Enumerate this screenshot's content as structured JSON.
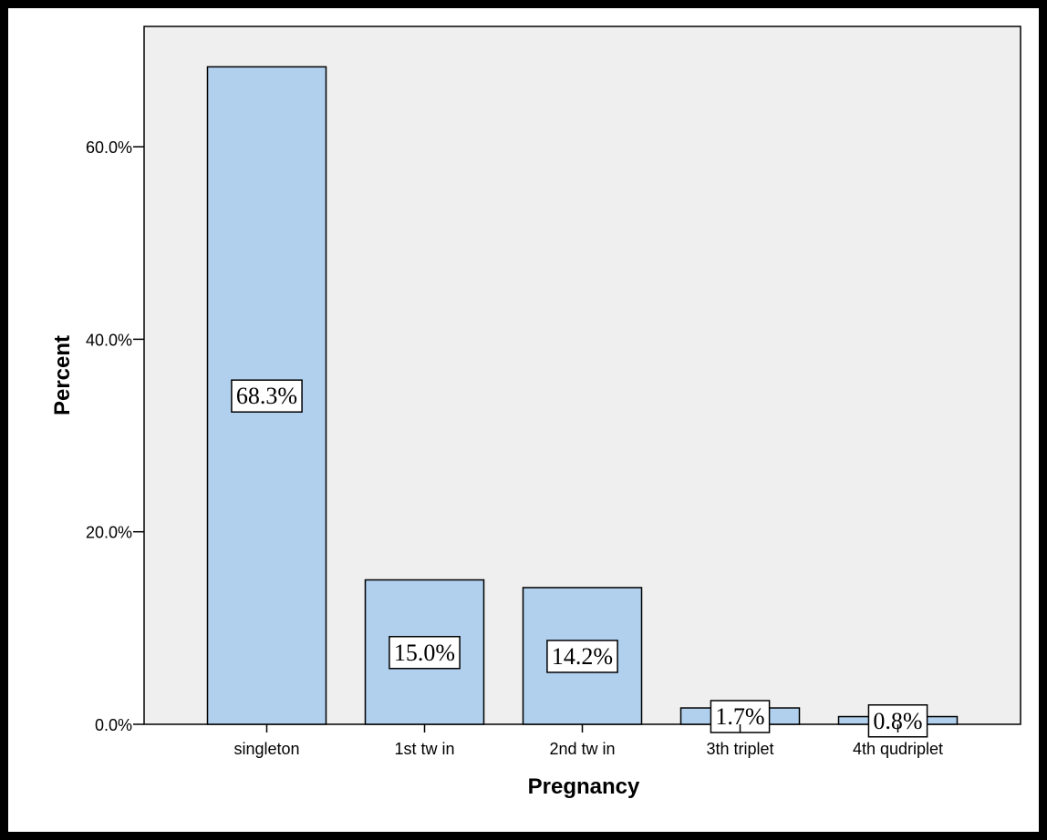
{
  "chart_data": {
    "type": "bar",
    "categories": [
      "singleton",
      "1st tw in",
      "2nd tw in",
      "3th triplet",
      "4th qudriplet"
    ],
    "values": [
      68.3,
      15.0,
      14.2,
      1.7,
      0.8
    ],
    "data_labels": [
      "68.3%",
      "15.0%",
      "14.2%",
      "1.7%",
      "0.8%"
    ],
    "xlabel": "Pregnancy",
    "ylabel": "Percent",
    "ylim": [
      0,
      72.5
    ],
    "yticks": [
      0,
      20,
      40,
      60
    ],
    "ytick_labels": [
      "0.0%",
      "20.0%",
      "40.0%",
      "60.0%"
    ],
    "grid": false,
    "colors": {
      "bar_fill": "#b0d0ee",
      "bar_stroke": "#000000",
      "plot_background": "#efefef",
      "figure_background": "#ffffff",
      "frame": "#000000",
      "label_box_fill": "#ffffff"
    }
  }
}
